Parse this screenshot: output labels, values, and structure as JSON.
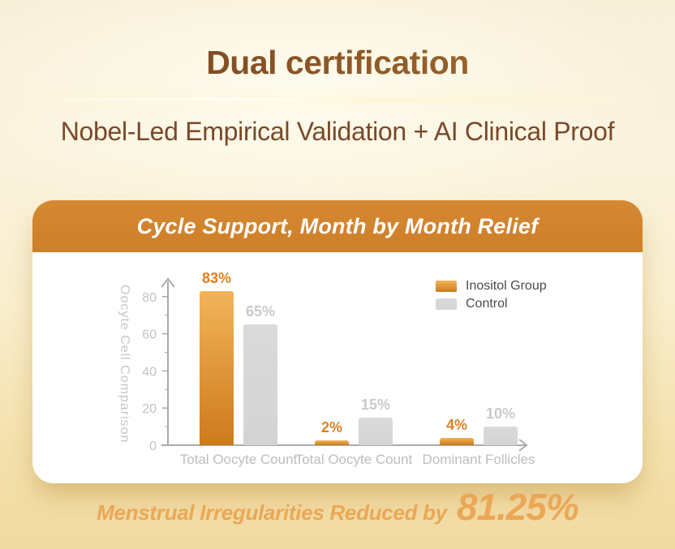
{
  "page": {
    "background_top": "#F8EFD9",
    "background_bottom": "#F1DAA0"
  },
  "header": {
    "title": "Dual certification",
    "subtitle": "Nobel-Led Empirical Validation + AI Clinical Proof",
    "title_color": "#8A5526",
    "subtitle_color": "#7A4929"
  },
  "card": {
    "title": "Cycle Support, Month by Month Relief",
    "header_color": "#D0822C"
  },
  "chart_data": {
    "type": "bar",
    "title": "Cycle Support, Month by Month Relief",
    "ylabel": "Oocyte Cell Comparison",
    "xlabel": "",
    "ylim": [
      0,
      88
    ],
    "yticks": [
      0,
      20,
      40,
      60,
      80
    ],
    "yticks_minor": [
      10,
      30,
      50,
      70
    ],
    "grid": false,
    "legend_position": "top-right",
    "axis_color": "#ABABAB",
    "tick_label_color": "#C2C2C2",
    "categories": [
      "Total Oocyte Count",
      "Total Oocyte Count",
      "Dominant Follicles"
    ],
    "series": [
      {
        "name": "Inositol Group",
        "values": [
          83,
          2,
          4
        ],
        "labels": [
          "83%",
          "2%",
          "4%"
        ],
        "fill_top": "#F2B459",
        "fill_bottom": "#CD7A1C",
        "label_color": "#E0801F"
      },
      {
        "name": "Control",
        "values": [
          65,
          15,
          10
        ],
        "labels": [
          "65%",
          "15%",
          "10%"
        ],
        "fill_top": "#DADADA",
        "fill_bottom": "#D4D4D4",
        "label_color": "#C9C9C9"
      }
    ]
  },
  "footer": {
    "text": "Menstrual Irregularities Reduced by",
    "highlight": "81.25%"
  }
}
